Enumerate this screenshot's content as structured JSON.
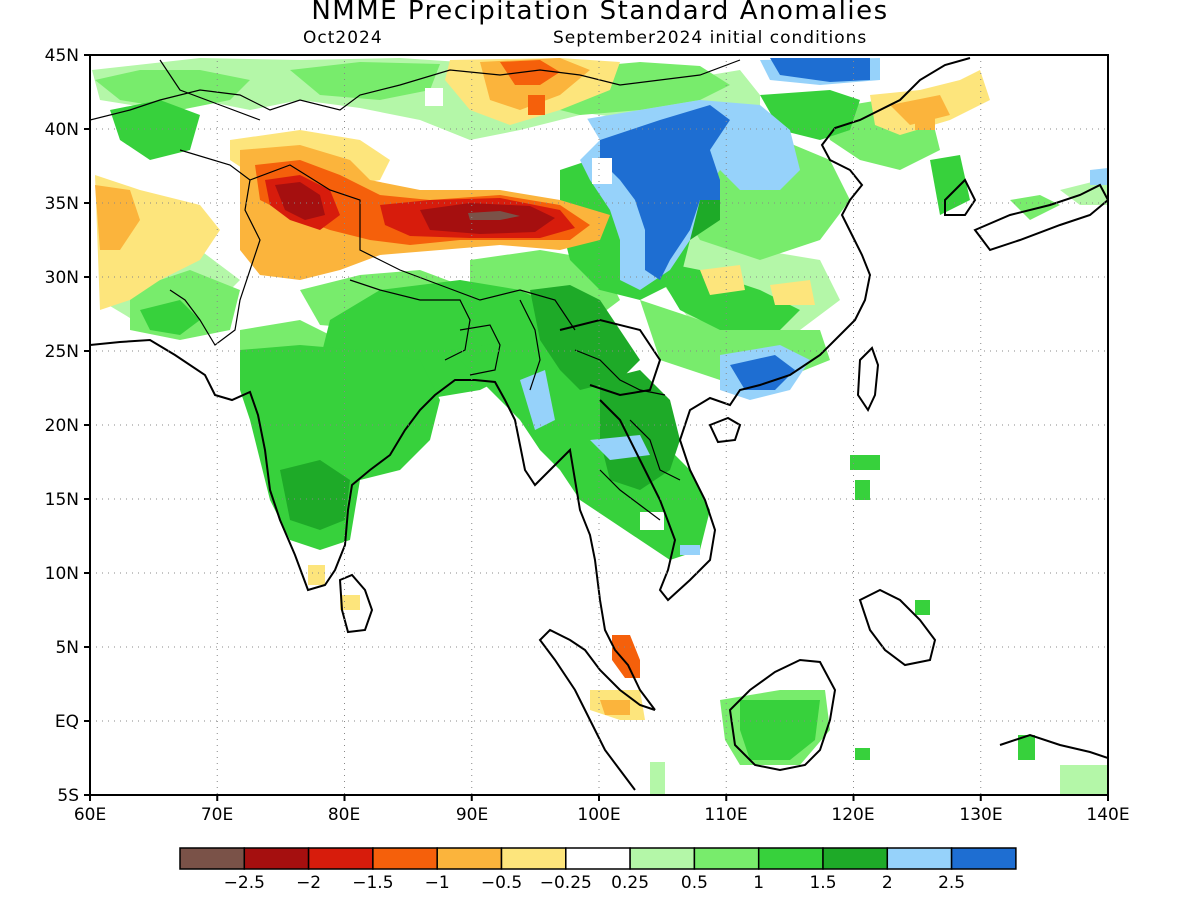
{
  "title": "NMME Precipitation Standard Anomalies",
  "subtitle_left": "Oct2024",
  "subtitle_right": "September2024 initial conditions",
  "lon_labels": [
    "60E",
    "70E",
    "80E",
    "90E",
    "100E",
    "110E",
    "120E",
    "130E",
    "140E"
  ],
  "lat_labels": [
    "45N",
    "40N",
    "35N",
    "30N",
    "25N",
    "20N",
    "15N",
    "10N",
    "5N",
    "EQ",
    "5S"
  ],
  "colorbar": {
    "colors": [
      "#7a5248",
      "#a50f0f",
      "#d71c0c",
      "#f5600b",
      "#fbb43c",
      "#fde57c",
      "#ffffff",
      "#b4f7a8",
      "#78ec6c",
      "#37d13c",
      "#1eaa28",
      "#96d2fa",
      "#1e6ed2"
    ],
    "labels": [
      "−2.5",
      "−2",
      "−1.5",
      "−1",
      "−0.5",
      "−0.25",
      "0.25",
      "0.5",
      "1",
      "1.5",
      "2",
      "2.5"
    ]
  },
  "map": {
    "lon_range": [
      60,
      140
    ],
    "lat_range": [
      -5,
      45
    ],
    "grid": "dotted"
  }
}
